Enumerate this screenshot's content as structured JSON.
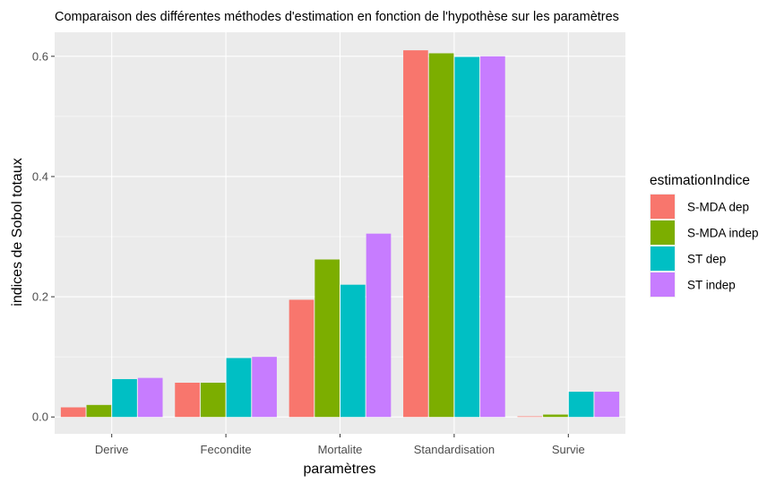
{
  "chart_data": {
    "type": "bar",
    "title": "Comparaison des différentes méthodes d'estimation en fonction de l'hypothèse sur les paramètres",
    "xlabel": "paramètres",
    "ylabel": "indices de Sobol totaux",
    "categories": [
      "Derive",
      "Fecondite",
      "Mortalite",
      "Standardisation",
      "Survie"
    ],
    "yticks": [
      "0.0",
      "0.2",
      "0.4",
      "0.6"
    ],
    "ylim": [
      -0.028,
      0.64
    ],
    "grid": true,
    "legend": {
      "title": "estimationIndice",
      "placement": "right"
    },
    "series": [
      {
        "name": "S-MDA dep",
        "color": "#F8766D",
        "values": [
          0.016,
          0.057,
          0.195,
          0.61,
          0.001
        ]
      },
      {
        "name": "S-MDA indep",
        "color": "#7CAE00",
        "values": [
          0.02,
          0.057,
          0.262,
          0.605,
          0.004
        ]
      },
      {
        "name": "ST dep",
        "color": "#00BFC4",
        "values": [
          0.063,
          0.098,
          0.22,
          0.599,
          0.042
        ]
      },
      {
        "name": "ST indep",
        "color": "#C77CFF",
        "values": [
          0.065,
          0.1,
          0.305,
          0.6,
          0.042
        ]
      }
    ]
  }
}
